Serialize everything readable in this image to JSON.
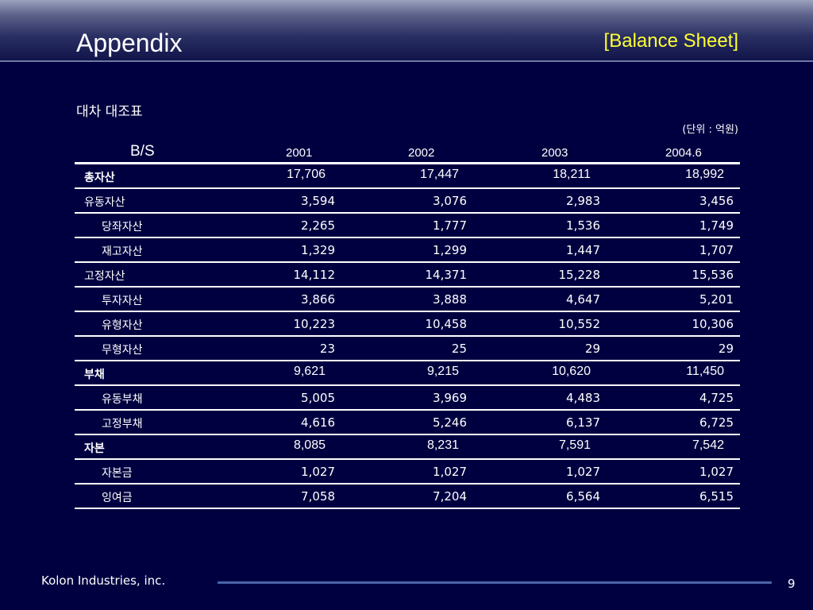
{
  "slide": {
    "title": "Appendix",
    "subtitle": "[Balance Sheet]",
    "table_title": "대차 대조표",
    "unit": "(단위 : 억원)",
    "company": "Kolon Industries, inc.",
    "page_number": "9"
  },
  "table": {
    "header_label": "B/S",
    "years": [
      "2001",
      "2002",
      "2003",
      "2004.6"
    ],
    "rows": [
      {
        "label": "총자산",
        "level": "main",
        "values": [
          "17,706",
          "17,447",
          "18,211",
          "18,992"
        ]
      },
      {
        "label": "유동자산",
        "level": "sub",
        "values": [
          "3,594",
          "3,076",
          "2,983",
          "3,456"
        ]
      },
      {
        "label": "당좌자산",
        "level": "child",
        "values": [
          "2,265",
          "1,777",
          "1,536",
          "1,749"
        ]
      },
      {
        "label": "재고자산",
        "level": "child",
        "values": [
          "1,329",
          "1,299",
          "1,447",
          "1,707"
        ]
      },
      {
        "label": "고정자산",
        "level": "sub",
        "values": [
          "14,112",
          "14,371",
          "15,228",
          "15,536"
        ]
      },
      {
        "label": "투자자산",
        "level": "child",
        "values": [
          "3,866",
          "3,888",
          "4,647",
          "5,201"
        ]
      },
      {
        "label": "유형자산",
        "level": "child",
        "values": [
          "10,223",
          "10,458",
          "10,552",
          "10,306"
        ]
      },
      {
        "label": "무형자산",
        "level": "child",
        "values": [
          "23",
          "25",
          "29",
          "29"
        ]
      },
      {
        "label": "부채",
        "level": "main",
        "values": [
          "9,621",
          "9,215",
          "10,620",
          "11,450"
        ]
      },
      {
        "label": "유동부채",
        "level": "child",
        "values": [
          "5,005",
          "3,969",
          "4,483",
          "4,725"
        ]
      },
      {
        "label": "고정부채",
        "level": "child",
        "values": [
          "4,616",
          "5,246",
          "6,137",
          "6,725"
        ]
      },
      {
        "label": "자본",
        "level": "main",
        "values": [
          "8,085",
          "8,231",
          "7,591",
          "7,542"
        ]
      },
      {
        "label": "자본금",
        "level": "child",
        "values": [
          "1,027",
          "1,027",
          "1,027",
          "1,027"
        ]
      },
      {
        "label": "잉여금",
        "level": "child",
        "values": [
          "7,058",
          "7,204",
          "6,564",
          "6,515"
        ]
      }
    ]
  }
}
